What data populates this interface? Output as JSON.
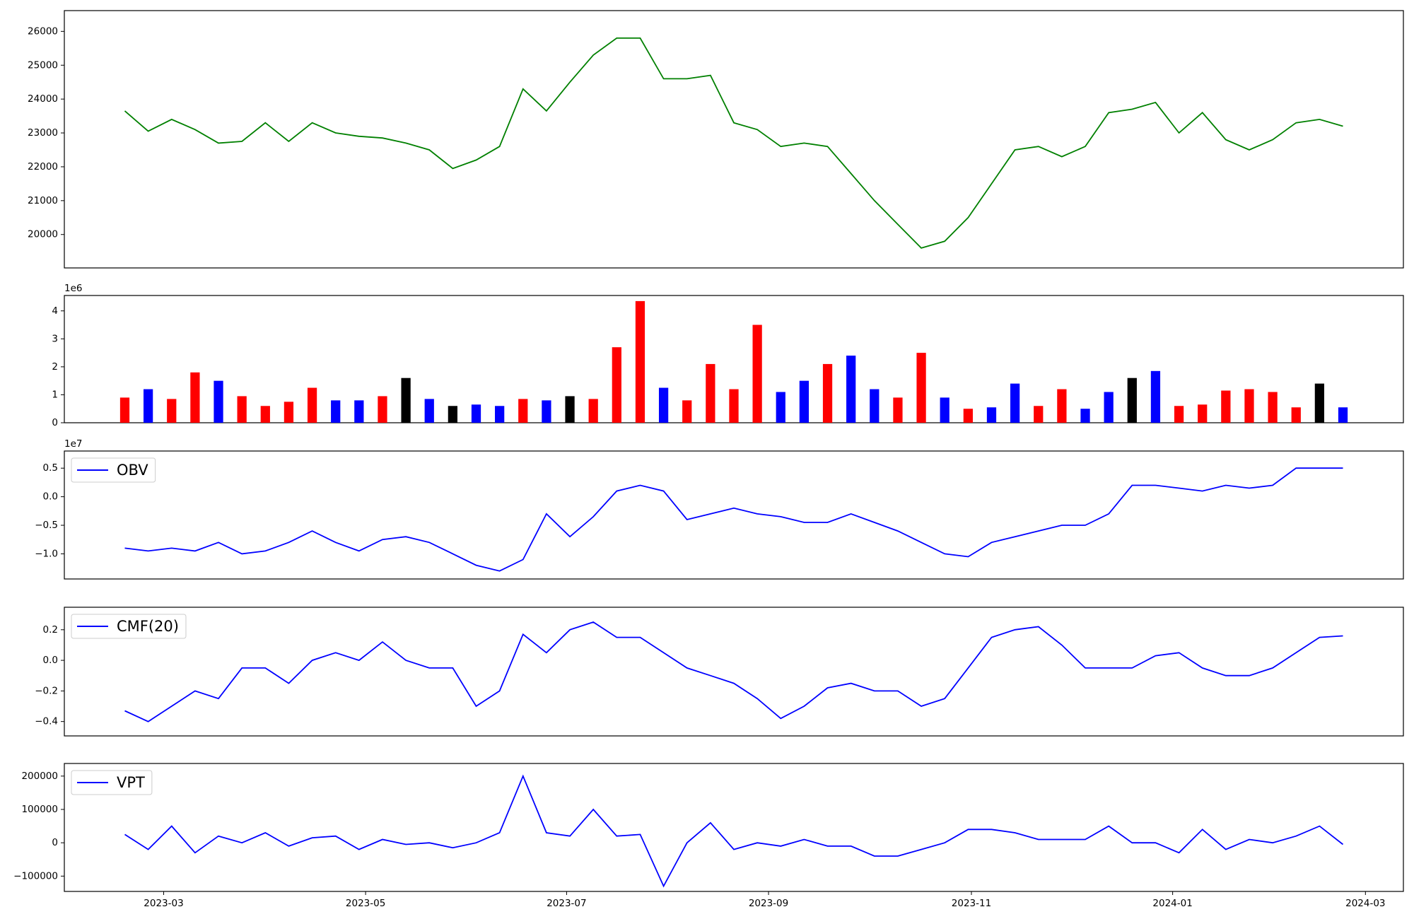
{
  "chart_data": [
    {
      "type": "line",
      "color": "#008000",
      "xlim": [
        -2.58,
        54.58
      ],
      "ylim": [
        19013,
        26613
      ],
      "yticks": [
        20000,
        21000,
        22000,
        23000,
        24000,
        25000,
        26000
      ],
      "values": [
        23650,
        23050,
        23400,
        23100,
        22700,
        22750,
        23300,
        22750,
        23300,
        23000,
        22900,
        22850,
        22700,
        22500,
        21950,
        22200,
        22600,
        24300,
        23650,
        24500,
        25300,
        25800,
        25800,
        24600,
        24600,
        24700,
        23300,
        23100,
        22600,
        22700,
        22600,
        21800,
        21000,
        20300,
        19600,
        19800,
        20500,
        21500,
        22500,
        22600,
        22300,
        22600,
        23600,
        23700,
        23900,
        23000,
        23600,
        22800,
        22500,
        22800,
        23300,
        23400,
        23200
      ]
    },
    {
      "type": "bar",
      "xlim": [
        -2.58,
        54.58
      ],
      "ylim": [
        0,
        4.55
      ],
      "yticks": [
        0,
        1,
        2,
        3,
        4
      ],
      "offset_label": "1e6",
      "values": [
        0.9,
        1.2,
        0.85,
        1.8,
        1.5,
        0.95,
        0.6,
        0.75,
        1.25,
        0.8,
        0.8,
        0.95,
        1.6,
        0.85,
        0.6,
        0.65,
        0.6,
        0.85,
        0.8,
        0.95,
        0.85,
        2.7,
        4.35,
        1.25,
        0.8,
        2.1,
        1.2,
        3.5,
        1.1,
        1.5,
        2.1,
        2.4,
        1.2,
        0.9,
        2.5,
        0.9,
        0.5,
        0.55,
        1.4,
        0.6,
        1.2,
        0.5,
        1.1,
        1.6,
        1.85,
        0.6,
        0.65,
        1.15,
        1.2,
        1.1,
        0.55,
        1.4,
        0.55
      ],
      "colors": [
        "#ff0000",
        "#0000ff",
        "#ff0000",
        "#ff0000",
        "#0000ff",
        "#ff0000",
        "#ff0000",
        "#ff0000",
        "#ff0000",
        "#0000ff",
        "#0000ff",
        "#ff0000",
        "#000000",
        "#0000ff",
        "#000000",
        "#0000ff",
        "#0000ff",
        "#ff0000",
        "#0000ff",
        "#000000",
        "#ff0000",
        "#ff0000",
        "#ff0000",
        "#0000ff",
        "#ff0000",
        "#ff0000",
        "#ff0000",
        "#ff0000",
        "#0000ff",
        "#0000ff",
        "#ff0000",
        "#0000ff",
        "#0000ff",
        "#ff0000",
        "#ff0000",
        "#0000ff",
        "#ff0000",
        "#0000ff",
        "#0000ff",
        "#ff0000",
        "#ff0000",
        "#0000ff",
        "#0000ff",
        "#000000",
        "#0000ff",
        "#ff0000",
        "#ff0000",
        "#ff0000",
        "#ff0000",
        "#ff0000",
        "#ff0000",
        "#000000",
        "#0000ff"
      ]
    },
    {
      "type": "line",
      "xlim": [
        -2.58,
        54.58
      ],
      "ylim": [
        -1.44,
        0.8
      ],
      "offset_label": "1e7",
      "legend": "upper left",
      "yticks": [
        {
          "value": -1.0,
          "label": "−1.0"
        },
        {
          "value": -0.5,
          "label": "−0.5"
        },
        {
          "value": 0.0,
          "label": "0.0"
        },
        {
          "value": 0.5,
          "label": "0.5"
        }
      ],
      "series": [
        {
          "name": "OBV",
          "color": "#0000ff",
          "values": [
            -0.9,
            -0.95,
            -0.9,
            -0.95,
            -0.8,
            -1.0,
            -0.95,
            -0.8,
            -0.6,
            -0.8,
            -0.95,
            -0.75,
            -0.7,
            -0.8,
            -1.0,
            -1.2,
            -1.3,
            -1.1,
            -0.3,
            -0.7,
            -0.35,
            0.1,
            0.2,
            0.1,
            -0.4,
            -0.3,
            -0.2,
            -0.3,
            -0.35,
            -0.45,
            -0.45,
            -0.3,
            -0.45,
            -0.6,
            -0.8,
            -1.0,
            -1.05,
            -0.8,
            -0.7,
            -0.6,
            -0.5,
            -0.5,
            -0.3,
            0.2,
            0.2,
            0.15,
            0.1,
            0.2,
            0.15,
            0.2,
            0.5,
            0.5,
            0.5
          ]
        }
      ]
    },
    {
      "type": "line",
      "xlim": [
        -2.58,
        54.58
      ],
      "ylim": [
        -0.494,
        0.347
      ],
      "legend": "upper left",
      "yticks": [
        {
          "value": -0.4,
          "label": "−0.4"
        },
        {
          "value": -0.2,
          "label": "−0.2"
        },
        {
          "value": 0.0,
          "label": "0.0"
        },
        {
          "value": 0.2,
          "label": "0.2"
        }
      ],
      "series": [
        {
          "name": "CMF(20)",
          "color": "#0000ff",
          "values": [
            -0.33,
            -0.4,
            -0.3,
            -0.2,
            -0.25,
            -0.05,
            -0.05,
            -0.15,
            0.0,
            0.05,
            0.0,
            0.12,
            0.0,
            -0.05,
            -0.05,
            -0.3,
            -0.2,
            0.17,
            0.05,
            0.2,
            0.25,
            0.15,
            0.15,
            0.05,
            -0.05,
            -0.1,
            -0.15,
            -0.25,
            -0.38,
            -0.3,
            -0.18,
            -0.15,
            -0.2,
            -0.2,
            -0.3,
            -0.25,
            -0.05,
            0.15,
            0.2,
            0.22,
            0.1,
            -0.05,
            -0.05,
            -0.05,
            0.03,
            0.05,
            -0.05,
            -0.1,
            -0.1,
            -0.05,
            0.05,
            0.15,
            0.16
          ]
        }
      ]
    },
    {
      "type": "line",
      "xlim": [
        -2.58,
        54.58
      ],
      "ylim": [
        -145946,
        237838
      ],
      "legend": "upper left",
      "yticks": [
        {
          "value": -100000,
          "label": "−100000"
        },
        0,
        100000,
        200000
      ],
      "xticks": [
        {
          "value": 1.66,
          "label": "2023-03"
        },
        {
          "value": 10.28,
          "label": "2023-05"
        },
        {
          "value": 18.86,
          "label": "2023-07"
        },
        {
          "value": 27.48,
          "label": "2023-09"
        },
        {
          "value": 36.14,
          "label": "2023-11"
        },
        {
          "value": 44.73,
          "label": "2024-01"
        },
        {
          "value": 52.96,
          "label": "2024-03"
        }
      ],
      "series": [
        {
          "name": "VPT",
          "color": "#0000ff",
          "values": [
            25000,
            -20000,
            50000,
            -30000,
            20000,
            0,
            30000,
            -10000,
            15000,
            20000,
            -20000,
            10000,
            -5000,
            0,
            -15000,
            0,
            30000,
            200000,
            30000,
            20000,
            100000,
            20000,
            25000,
            -130000,
            0,
            60000,
            -20000,
            0,
            -10000,
            10000,
            -10000,
            -10000,
            -40000,
            -40000,
            -20000,
            0,
            40000,
            40000,
            30000,
            10000,
            10000,
            10000,
            50000,
            0,
            0,
            -30000,
            40000,
            -20000,
            10000,
            0,
            20000,
            50000,
            -5000
          ]
        }
      ]
    }
  ]
}
